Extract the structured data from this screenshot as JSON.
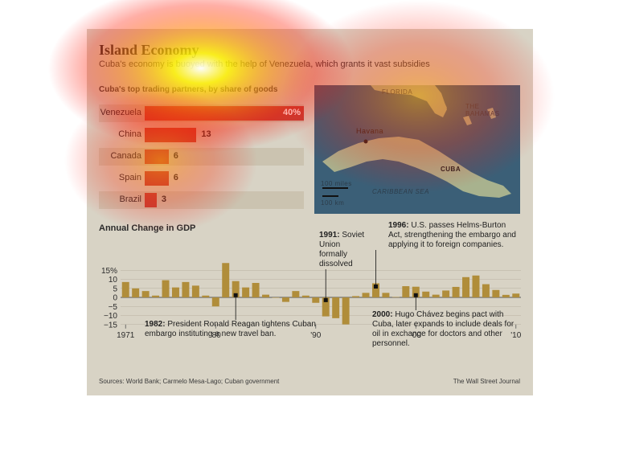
{
  "header": {
    "title": "Island Economy",
    "subtitle": "Cuba's economy is buoyed with the help of Venezuela, which grants it vast subsidies"
  },
  "chart_data": [
    {
      "type": "bar",
      "orientation": "horizontal",
      "title": "Cuba's top trading partners, by share of goods",
      "categories": [
        "Venezuela",
        "China",
        "Canada",
        "Spain",
        "Brazil"
      ],
      "values": [
        40,
        13,
        6,
        6,
        3
      ],
      "value_labels": [
        "40%",
        "13",
        "6",
        "6",
        "3"
      ]
    },
    {
      "type": "bar",
      "title": "Annual Change in GDP",
      "x": [
        1971,
        1972,
        1973,
        1974,
        1975,
        1976,
        1977,
        1978,
        1979,
        1980,
        1981,
        1982,
        1983,
        1984,
        1985,
        1986,
        1987,
        1988,
        1989,
        1990,
        1991,
        1992,
        1993,
        1994,
        1995,
        1996,
        1997,
        1998,
        1999,
        2000,
        2001,
        2002,
        2003,
        2004,
        2005,
        2006,
        2007,
        2008,
        2009,
        2010
      ],
      "values": [
        8.5,
        5,
        3.5,
        1,
        9.5,
        5.5,
        8.5,
        6.5,
        1,
        -5,
        19,
        9,
        5.5,
        8,
        1.5,
        0,
        -2.5,
        3.5,
        1,
        -3,
        -10.5,
        -11.5,
        -14.9,
        0.7,
        2.5,
        7.8,
        2.5,
        0.2,
        6.2,
        5.9,
        3.2,
        1.5,
        3.8,
        5.8,
        11.2,
        12.1,
        7.3,
        4.1,
        1.4,
        2.1
      ],
      "ylim": [
        -15,
        20
      ],
      "yticks": [
        15,
        10,
        5,
        0,
        -5,
        -10,
        -15
      ],
      "ytick_labels": [
        "15%",
        "10",
        "5",
        "0",
        "−5",
        "−10",
        "−15"
      ],
      "xtick_labels": [
        {
          "year": 1971,
          "label": "1971"
        },
        {
          "year": 1980,
          "label": "'80"
        },
        {
          "year": 1990,
          "label": "'90"
        },
        {
          "year": 2000,
          "label": "'00"
        },
        {
          "year": 2010,
          "label": "'10"
        }
      ],
      "annotations": [
        {
          "year": 1982,
          "value": 1.2,
          "lead": "1982:",
          "text": "President Ronald Reagan tightens Cuban embargo instituting a new travel ban."
        },
        {
          "year": 1991,
          "value": -1.5,
          "lead": "1991:",
          "text": "Soviet Union formally dissolved"
        },
        {
          "year": 1996,
          "value": 6,
          "lead": "1996:",
          "text": "U.S. passes Helms-Burton Act, strengthening the embargo and applying it to foreign companies."
        },
        {
          "year": 2000,
          "value": 1.2,
          "lead": "2000:",
          "text": "Hugo Chávez begins pact with Cuba, later expands to include deals for oil in exchange for doctors and other personnel."
        }
      ]
    }
  ],
  "map": {
    "labels": {
      "florida": "FLORIDA",
      "bahamas": "THE BAHAMAS",
      "havana": "Havana",
      "cuba": "CUBA",
      "sea": "CARIBBEAN SEA",
      "scale_miles": "100 miles",
      "scale_km": "100 km"
    }
  },
  "footer": {
    "sources": "Sources: World Bank; Carmelo Mesa-Lago; Cuban government",
    "credit": "The Wall Street Journal"
  },
  "colors": {
    "panel": "#d8d3c5",
    "trade_bar": "#c0433a",
    "gdp_bar": "#b08d3a",
    "sea": "#3b5f77",
    "land": "#a8b28e"
  }
}
